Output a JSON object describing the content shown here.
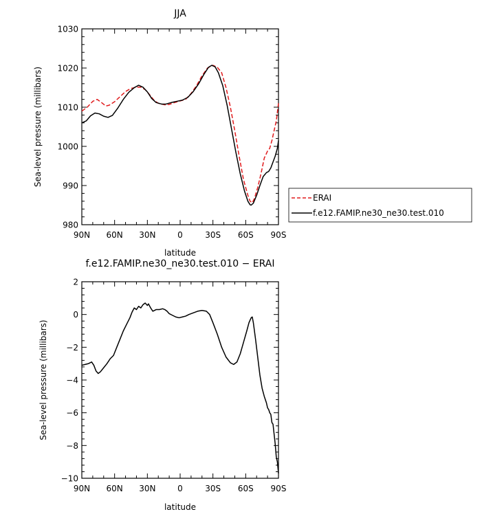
{
  "chart_data": [
    {
      "type": "line",
      "title": "JJA",
      "xlabel": "latitude",
      "ylabel": "Sea-level pressure (millibars)",
      "xlim": [
        90,
        -90
      ],
      "ylim": [
        980,
        1030
      ],
      "x_ticks": [
        90,
        60,
        30,
        0,
        -30,
        -60,
        -90
      ],
      "x_tick_labels": [
        "90N",
        "60N",
        "30N",
        "0",
        "30S",
        "60S",
        "90S"
      ],
      "y_ticks": [
        980,
        990,
        1000,
        1010,
        1020,
        1030
      ],
      "y_tick_labels": [
        "980",
        "990",
        "1000",
        "1010",
        "1020",
        "1030"
      ],
      "legend": "right",
      "grid": false,
      "series": [
        {
          "name": "ERAI",
          "color": "#e0191b",
          "style": "dashed",
          "points": [
            [
              90,
              1009.0
            ],
            [
              85,
              1010.0
            ],
            [
              80,
              1011.5
            ],
            [
              76,
              1012.0
            ],
            [
              72,
              1011.2
            ],
            [
              68,
              1010.3
            ],
            [
              65,
              1010.5
            ],
            [
              60,
              1011.4
            ],
            [
              55,
              1012.7
            ],
            [
              50,
              1014.0
            ],
            [
              45,
              1014.8
            ],
            [
              40,
              1015.1
            ],
            [
              36,
              1015.1
            ],
            [
              32,
              1014.5
            ],
            [
              28,
              1013.2
            ],
            [
              24,
              1011.8
            ],
            [
              20,
              1011.0
            ],
            [
              14,
              1010.6
            ],
            [
              10,
              1010.7
            ],
            [
              5,
              1011.2
            ],
            [
              0,
              1011.6
            ],
            [
              -5,
              1012.0
            ],
            [
              -10,
              1013.5
            ],
            [
              -15,
              1015.5
            ],
            [
              -20,
              1018.0
            ],
            [
              -25,
              1020.0
            ],
            [
              -30,
              1020.7
            ],
            [
              -34,
              1020.2
            ],
            [
              -38,
              1018.8
            ],
            [
              -42,
              1015.0
            ],
            [
              -46,
              1010.0
            ],
            [
              -50,
              1004.0
            ],
            [
              -54,
              997.5
            ],
            [
              -58,
              991.5
            ],
            [
              -62,
              987.5
            ],
            [
              -64,
              986.0
            ],
            [
              -66,
              985.6
            ],
            [
              -68,
              986.7
            ],
            [
              -71,
              989.5
            ],
            [
              -74,
              993.0
            ],
            [
              -77,
              997.0
            ],
            [
              -80,
              998.8
            ],
            [
              -82,
              999.5
            ],
            [
              -84,
              1001.5
            ],
            [
              -86,
              1004.0
            ],
            [
              -88,
              1006.5
            ],
            [
              -90,
              1011.0
            ]
          ]
        },
        {
          "name": "f.e12.FAMIP.ne30_ne30.test.010",
          "color": "#000000",
          "style": "solid",
          "points": [
            [
              90,
              1006.0
            ],
            [
              86,
              1006.5
            ],
            [
              82,
              1007.8
            ],
            [
              78,
              1008.5
            ],
            [
              74,
              1008.3
            ],
            [
              70,
              1007.7
            ],
            [
              66,
              1007.4
            ],
            [
              62,
              1007.9
            ],
            [
              57,
              1009.8
            ],
            [
              52,
              1012.0
            ],
            [
              47,
              1013.8
            ],
            [
              42,
              1015.0
            ],
            [
              38,
              1015.6
            ],
            [
              34,
              1015.1
            ],
            [
              30,
              1013.9
            ],
            [
              26,
              1012.2
            ],
            [
              22,
              1011.2
            ],
            [
              17,
              1010.8
            ],
            [
              13,
              1010.8
            ],
            [
              8,
              1011.2
            ],
            [
              3,
              1011.5
            ],
            [
              -2,
              1011.8
            ],
            [
              -7,
              1012.5
            ],
            [
              -12,
              1014.0
            ],
            [
              -17,
              1016.0
            ],
            [
              -22,
              1018.5
            ],
            [
              -26,
              1020.2
            ],
            [
              -29,
              1020.7
            ],
            [
              -32,
              1020.3
            ],
            [
              -35,
              1018.8
            ],
            [
              -39,
              1015.5
            ],
            [
              -43,
              1010.5
            ],
            [
              -47,
              1004.5
            ],
            [
              -51,
              998.5
            ],
            [
              -55,
              993.0
            ],
            [
              -59,
              988.5
            ],
            [
              -62,
              986.0
            ],
            [
              -64,
              985.1
            ],
            [
              -65,
              985.0
            ],
            [
              -67,
              985.5
            ],
            [
              -70,
              987.5
            ],
            [
              -73,
              990.0
            ],
            [
              -76,
              992.3
            ],
            [
              -79,
              993.3
            ],
            [
              -81,
              993.6
            ],
            [
              -83,
              994.5
            ],
            [
              -85,
              996.0
            ],
            [
              -87,
              997.5
            ],
            [
              -89,
              999.5
            ],
            [
              -90,
              1001.5
            ]
          ]
        }
      ]
    },
    {
      "type": "line",
      "title": "f.e12.FAMIP.ne30_ne30.test.010 − ERAI",
      "xlabel": "latitude",
      "ylabel": "Sea-level pressure (millibars)",
      "xlim": [
        90,
        -90
      ],
      "ylim": [
        -10,
        2
      ],
      "x_ticks": [
        90,
        60,
        30,
        0,
        -30,
        -60,
        -90
      ],
      "x_tick_labels": [
        "90N",
        "60N",
        "30N",
        "0",
        "30S",
        "60S",
        "90S"
      ],
      "y_ticks": [
        -10,
        -8,
        -6,
        -4,
        -2,
        0,
        2
      ],
      "y_tick_labels": [
        "−10",
        "−8",
        "−6",
        "−4",
        "−2",
        "0",
        "2"
      ],
      "grid": false,
      "series": [
        {
          "color": "#000000",
          "style": "solid",
          "points": [
            [
              90,
              -3.1
            ],
            [
              87,
              -3.05
            ],
            [
              84,
              -3.0
            ],
            [
              81,
              -2.9
            ],
            [
              79,
              -3.1
            ],
            [
              77,
              -3.45
            ],
            [
              75,
              -3.6
            ],
            [
              73,
              -3.5
            ],
            [
              70,
              -3.25
            ],
            [
              67,
              -3.0
            ],
            [
              64,
              -2.7
            ],
            [
              61,
              -2.5
            ],
            [
              58,
              -2.0
            ],
            [
              55,
              -1.5
            ],
            [
              52,
              -1.0
            ],
            [
              49,
              -0.6
            ],
            [
              46,
              -0.2
            ],
            [
              44,
              0.15
            ],
            [
              42,
              0.4
            ],
            [
              40,
              0.3
            ],
            [
              38,
              0.5
            ],
            [
              36,
              0.4
            ],
            [
              34,
              0.6
            ],
            [
              32,
              0.7
            ],
            [
              30,
              0.55
            ],
            [
              29,
              0.65
            ],
            [
              27,
              0.4
            ],
            [
              25,
              0.2
            ],
            [
              22,
              0.3
            ],
            [
              19,
              0.3
            ],
            [
              16,
              0.35
            ],
            [
              14,
              0.3
            ],
            [
              12,
              0.2
            ],
            [
              10,
              0.05
            ],
            [
              7,
              -0.05
            ],
            [
              4,
              -0.15
            ],
            [
              1,
              -0.2
            ],
            [
              -2,
              -0.15
            ],
            [
              -5,
              -0.1
            ],
            [
              -8,
              0.0
            ],
            [
              -12,
              0.1
            ],
            [
              -16,
              0.2
            ],
            [
              -20,
              0.25
            ],
            [
              -24,
              0.2
            ],
            [
              -27,
              0.0
            ],
            [
              -30,
              -0.5
            ],
            [
              -34,
              -1.2
            ],
            [
              -38,
              -2.0
            ],
            [
              -42,
              -2.6
            ],
            [
              -46,
              -2.95
            ],
            [
              -49,
              -3.05
            ],
            [
              -52,
              -2.9
            ],
            [
              -55,
              -2.4
            ],
            [
              -58,
              -1.7
            ],
            [
              -61,
              -1.0
            ],
            [
              -63,
              -0.5
            ],
            [
              -65,
              -0.2
            ],
            [
              -66,
              -0.15
            ],
            [
              -67,
              -0.5
            ],
            [
              -69,
              -1.5
            ],
            [
              -71,
              -2.6
            ],
            [
              -73,
              -3.7
            ],
            [
              -75,
              -4.5
            ],
            [
              -77,
              -5.0
            ],
            [
              -79,
              -5.4
            ],
            [
              -80,
              -5.7
            ],
            [
              -81,
              -5.8
            ],
            [
              -82,
              -6.0
            ],
            [
              -83,
              -6.1
            ],
            [
              -84,
              -6.6
            ],
            [
              -85,
              -6.7
            ],
            [
              -86,
              -7.3
            ],
            [
              -87,
              -7.9
            ],
            [
              -88,
              -8.7
            ],
            [
              -89,
              -9.0
            ],
            [
              -90,
              -9.7
            ]
          ]
        }
      ]
    }
  ]
}
